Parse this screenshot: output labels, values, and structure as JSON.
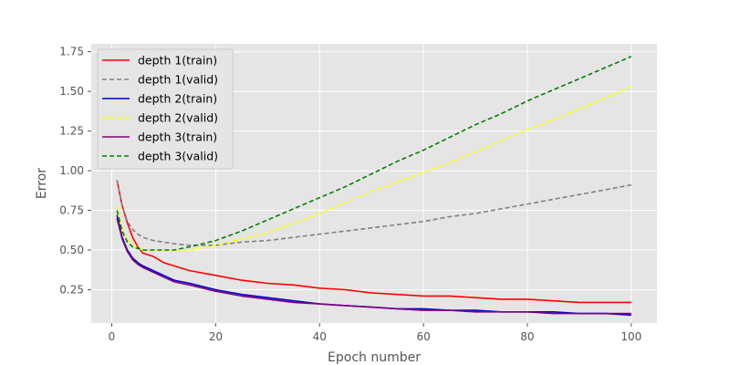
{
  "chart_data": {
    "type": "line",
    "title": "",
    "xlabel": "Epoch number",
    "ylabel": "Error",
    "xlim": [
      -3.95,
      104.95
    ],
    "ylim": [
      0.04,
      1.8
    ],
    "xticks": [
      0,
      20,
      40,
      60,
      80,
      100
    ],
    "yticks": [
      0.25,
      0.5,
      0.75,
      1.0,
      1.25,
      1.5,
      1.75
    ],
    "xtick_labels": [
      "0",
      "20",
      "40",
      "60",
      "80",
      "100"
    ],
    "ytick_labels": [
      "0.25",
      "0.50",
      "0.75",
      "1.00",
      "1.25",
      "1.50",
      "1.75"
    ],
    "grid": true,
    "legend_position": "top-left",
    "style": "ggplot",
    "series": [
      {
        "name": "depth 1(train)",
        "color": "#ff0000",
        "dash": "solid",
        "x": [
          1,
          2,
          3,
          4,
          5,
          6,
          8,
          10,
          12,
          15,
          20,
          25,
          30,
          35,
          40,
          45,
          50,
          55,
          60,
          65,
          70,
          75,
          80,
          85,
          90,
          95,
          100
        ],
        "y": [
          0.94,
          0.78,
          0.67,
          0.58,
          0.52,
          0.48,
          0.46,
          0.42,
          0.4,
          0.37,
          0.34,
          0.31,
          0.29,
          0.28,
          0.26,
          0.25,
          0.23,
          0.22,
          0.21,
          0.21,
          0.2,
          0.19,
          0.19,
          0.18,
          0.17,
          0.17,
          0.17
        ]
      },
      {
        "name": "depth 1(valid)",
        "color": "#808080",
        "dash": "dashed",
        "x": [
          1,
          2,
          3,
          4,
          5,
          6,
          8,
          10,
          12,
          15,
          20,
          25,
          30,
          35,
          40,
          45,
          50,
          55,
          60,
          65,
          70,
          75,
          80,
          85,
          90,
          95,
          100
        ],
        "y": [
          0.94,
          0.78,
          0.68,
          0.63,
          0.6,
          0.58,
          0.56,
          0.55,
          0.54,
          0.53,
          0.53,
          0.55,
          0.56,
          0.58,
          0.6,
          0.62,
          0.64,
          0.66,
          0.68,
          0.71,
          0.73,
          0.76,
          0.79,
          0.82,
          0.85,
          0.88,
          0.91
        ]
      },
      {
        "name": "depth 2(train)",
        "color": "#0000cd",
        "dash": "solid",
        "x": [
          1,
          2,
          3,
          4,
          5,
          6,
          8,
          10,
          12,
          15,
          20,
          25,
          30,
          35,
          40,
          45,
          50,
          55,
          60,
          65,
          70,
          75,
          80,
          85,
          90,
          95,
          100
        ],
        "y": [
          0.72,
          0.58,
          0.5,
          0.45,
          0.42,
          0.4,
          0.37,
          0.34,
          0.31,
          0.29,
          0.25,
          0.22,
          0.2,
          0.18,
          0.16,
          0.15,
          0.14,
          0.13,
          0.13,
          0.12,
          0.12,
          0.11,
          0.11,
          0.11,
          0.1,
          0.1,
          0.09
        ]
      },
      {
        "name": "depth 2(valid)",
        "color": "#ffff00",
        "dash": "dashed",
        "x": [
          1,
          2,
          3,
          4,
          5,
          6,
          8,
          10,
          12,
          15,
          20,
          25,
          30,
          35,
          40,
          45,
          50,
          55,
          60,
          65,
          70,
          75,
          80,
          85,
          90,
          95,
          100
        ],
        "y": [
          0.78,
          0.64,
          0.56,
          0.53,
          0.51,
          0.5,
          0.5,
          0.5,
          0.5,
          0.5,
          0.53,
          0.57,
          0.61,
          0.67,
          0.73,
          0.8,
          0.87,
          0.93,
          0.99,
          1.05,
          1.12,
          1.19,
          1.26,
          1.32,
          1.39,
          1.46,
          1.53
        ]
      },
      {
        "name": "depth 3(train)",
        "color": "#800080",
        "dash": "solid",
        "x": [
          1,
          2,
          3,
          4,
          5,
          6,
          8,
          10,
          12,
          15,
          20,
          25,
          30,
          35,
          40,
          45,
          50,
          55,
          60,
          65,
          70,
          75,
          80,
          85,
          90,
          95,
          100
        ],
        "y": [
          0.7,
          0.57,
          0.49,
          0.44,
          0.41,
          0.39,
          0.36,
          0.33,
          0.3,
          0.28,
          0.24,
          0.21,
          0.19,
          0.17,
          0.16,
          0.15,
          0.14,
          0.13,
          0.12,
          0.12,
          0.11,
          0.11,
          0.11,
          0.1,
          0.1,
          0.1,
          0.1
        ]
      },
      {
        "name": "depth 3(valid)",
        "color": "#008000",
        "dash": "dashed",
        "x": [
          1,
          2,
          3,
          4,
          5,
          6,
          8,
          10,
          12,
          15,
          20,
          25,
          30,
          35,
          40,
          45,
          50,
          55,
          60,
          65,
          70,
          75,
          80,
          85,
          90,
          95,
          100
        ],
        "y": [
          0.75,
          0.62,
          0.55,
          0.52,
          0.51,
          0.5,
          0.5,
          0.5,
          0.5,
          0.52,
          0.56,
          0.62,
          0.69,
          0.76,
          0.83,
          0.9,
          0.98,
          1.06,
          1.13,
          1.21,
          1.29,
          1.36,
          1.44,
          1.51,
          1.58,
          1.65,
          1.72
        ]
      }
    ]
  }
}
